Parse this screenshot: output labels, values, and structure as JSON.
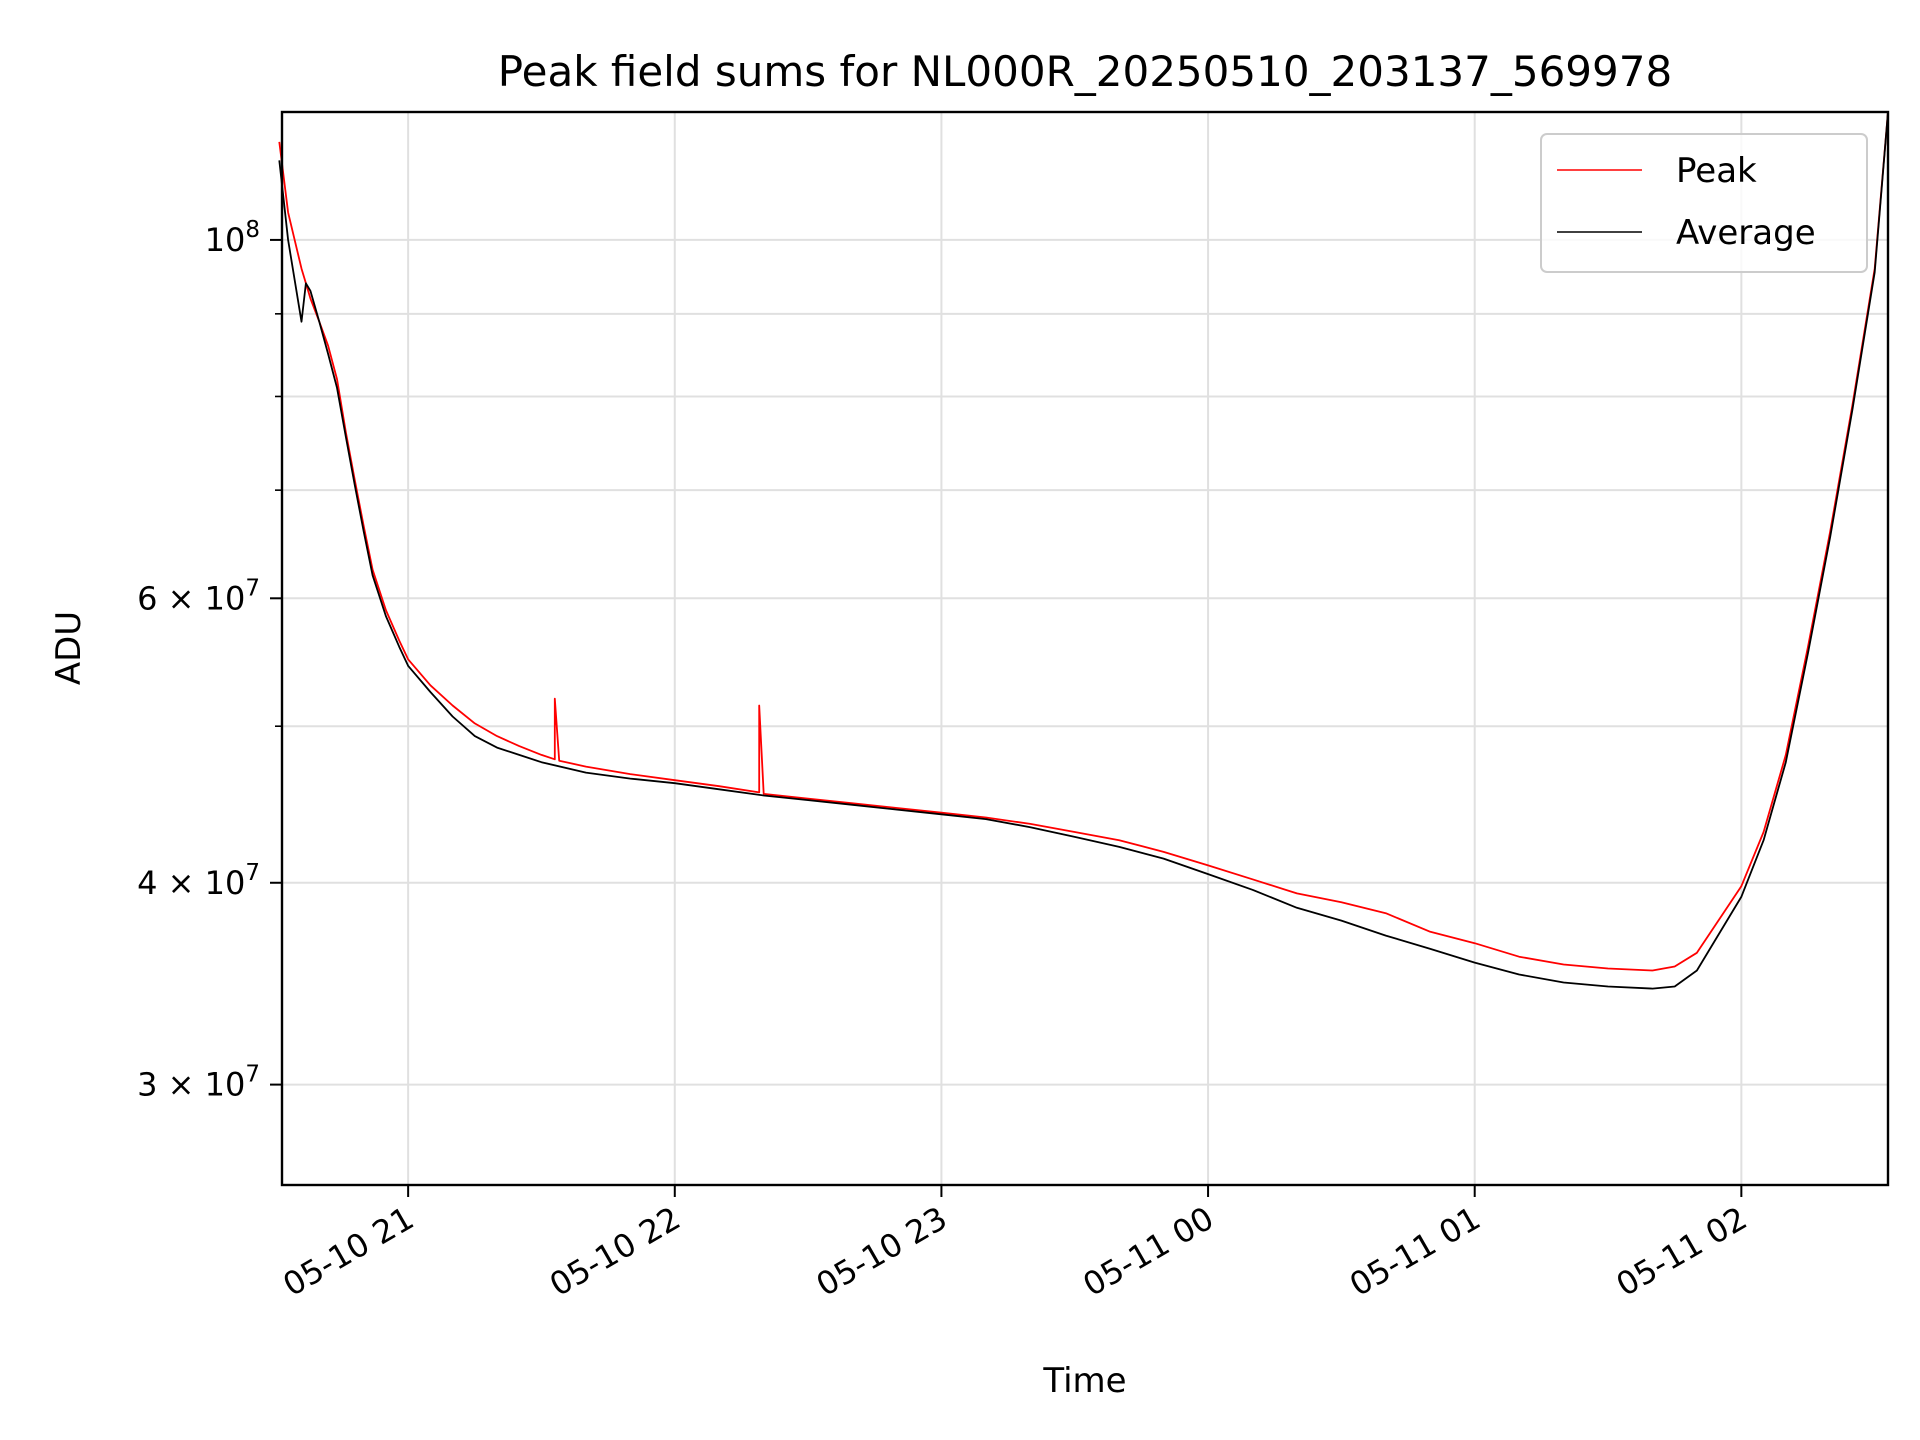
{
  "chart_data": {
    "type": "line",
    "title": "Peak field sums for NL000R_20250510_203137_569978",
    "xlabel": "Time",
    "ylabel": "ADU",
    "y_scale": "log",
    "xlim": [
      "2025-05-10 20:31:37",
      "2025-05-11 02:33:00"
    ],
    "ylim": [
      26000000,
      120000000
    ],
    "x_ticks": [
      {
        "value": "2025-05-10 21:00",
        "label": "05-10 21"
      },
      {
        "value": "2025-05-10 22:00",
        "label": "05-10 22"
      },
      {
        "value": "2025-05-10 23:00",
        "label": "05-10 23"
      },
      {
        "value": "2025-05-11 00:00",
        "label": "05-11 00"
      },
      {
        "value": "2025-05-11 01:00",
        "label": "05-11 01"
      },
      {
        "value": "2025-05-11 02:00",
        "label": "05-11 02"
      }
    ],
    "y_ticks": [
      {
        "value": 30000000,
        "base": "3",
        "exp": "7"
      },
      {
        "value": 40000000,
        "base": "4",
        "exp": "7"
      },
      {
        "value": 60000000,
        "base": "6",
        "exp": "7"
      },
      {
        "value": 100000000,
        "base": "",
        "exp": "8"
      }
    ],
    "y_minor_ticks": [
      50000000,
      70000000,
      80000000,
      90000000
    ],
    "grid": true,
    "legend": "top-right",
    "series": [
      {
        "name": "Peak",
        "color": "#ff0000",
        "x": [
          "2025-05-10 20:31",
          "2025-05-10 20:33",
          "2025-05-10 20:36",
          "2025-05-10 20:37",
          "2025-05-10 20:38",
          "2025-05-10 20:40",
          "2025-05-10 20:42",
          "2025-05-10 20:44",
          "2025-05-10 20:46",
          "2025-05-10 20:48",
          "2025-05-10 20:50",
          "2025-05-10 20:52",
          "2025-05-10 20:55",
          "2025-05-10 20:58",
          "2025-05-10 21:00",
          "2025-05-10 21:05",
          "2025-05-10 21:10",
          "2025-05-10 21:15",
          "2025-05-10 21:20",
          "2025-05-10 21:25",
          "2025-05-10 21:30",
          "2025-05-10 21:33",
          "2025-05-10 21:33",
          "2025-05-10 21:34",
          "2025-05-10 21:40",
          "2025-05-10 21:50",
          "2025-05-10 22:00",
          "2025-05-10 22:10",
          "2025-05-10 22:19",
          "2025-05-10 22:19",
          "2025-05-10 22:20",
          "2025-05-10 22:30",
          "2025-05-10 22:40",
          "2025-05-10 22:50",
          "2025-05-10 23:00",
          "2025-05-10 23:10",
          "2025-05-10 23:20",
          "2025-05-10 23:30",
          "2025-05-10 23:40",
          "2025-05-10 23:50",
          "2025-05-11 00:00",
          "2025-05-11 00:10",
          "2025-05-11 00:20",
          "2025-05-11 00:30",
          "2025-05-11 00:40",
          "2025-05-11 00:50",
          "2025-05-11 01:00",
          "2025-05-11 01:10",
          "2025-05-11 01:20",
          "2025-05-11 01:30",
          "2025-05-11 01:40",
          "2025-05-11 01:45",
          "2025-05-11 01:50",
          "2025-05-11 02:00",
          "2025-05-11 02:05",
          "2025-05-11 02:10",
          "2025-05-11 02:15",
          "2025-05-11 02:20",
          "2025-05-11 02:25",
          "2025-05-11 02:30",
          "2025-05-11 02:33"
        ],
        "values": [
          115000000,
          104000000,
          96000000,
          94000000,
          92000000,
          89000000,
          86000000,
          82000000,
          76000000,
          71000000,
          66500000,
          62500000,
          59000000,
          56500000,
          55000000,
          53000000,
          51500000,
          50200000,
          49300000,
          48600000,
          48000000,
          47700000,
          52000000,
          47600000,
          47200000,
          46700000,
          46300000,
          45900000,
          45500000,
          51500000,
          45400000,
          45100000,
          44800000,
          44500000,
          44200000,
          43900000,
          43500000,
          43000000,
          42500000,
          41800000,
          41000000,
          40200000,
          39400000,
          38900000,
          38300000,
          37300000,
          36700000,
          36000000,
          35600000,
          35400000,
          35300000,
          35500000,
          36200000,
          39800000,
          43000000,
          48000000,
          56000000,
          66000000,
          79000000,
          96000000,
          120000000
        ]
      },
      {
        "name": "Average",
        "color": "#000000",
        "x": [
          "2025-05-10 20:31",
          "2025-05-10 20:33",
          "2025-05-10 20:36",
          "2025-05-10 20:37",
          "2025-05-10 20:38",
          "2025-05-10 20:40",
          "2025-05-10 20:42",
          "2025-05-10 20:44",
          "2025-05-10 20:46",
          "2025-05-10 20:48",
          "2025-05-10 20:50",
          "2025-05-10 20:52",
          "2025-05-10 20:55",
          "2025-05-10 20:58",
          "2025-05-10 21:00",
          "2025-05-10 21:05",
          "2025-05-10 21:10",
          "2025-05-10 21:15",
          "2025-05-10 21:20",
          "2025-05-10 21:25",
          "2025-05-10 21:30",
          "2025-05-10 21:40",
          "2025-05-10 21:50",
          "2025-05-10 22:00",
          "2025-05-10 22:10",
          "2025-05-10 22:20",
          "2025-05-10 22:30",
          "2025-05-10 22:40",
          "2025-05-10 22:50",
          "2025-05-10 23:00",
          "2025-05-10 23:10",
          "2025-05-10 23:20",
          "2025-05-10 23:30",
          "2025-05-10 23:40",
          "2025-05-10 23:50",
          "2025-05-11 00:00",
          "2025-05-11 00:10",
          "2025-05-11 00:20",
          "2025-05-11 00:30",
          "2025-05-11 00:40",
          "2025-05-11 00:50",
          "2025-05-11 01:00",
          "2025-05-11 01:10",
          "2025-05-11 01:20",
          "2025-05-11 01:30",
          "2025-05-11 01:40",
          "2025-05-11 01:45",
          "2025-05-11 01:50",
          "2025-05-11 02:00",
          "2025-05-11 02:05",
          "2025-05-11 02:10",
          "2025-05-11 02:15",
          "2025-05-11 02:20",
          "2025-05-11 02:25",
          "2025-05-11 02:30",
          "2025-05-11 02:33"
        ],
        "values": [
          112000000,
          100000000,
          89000000,
          94000000,
          93000000,
          89000000,
          85000000,
          81000000,
          75500000,
          70500000,
          66000000,
          62000000,
          58500000,
          56000000,
          54500000,
          52500000,
          50700000,
          49300000,
          48500000,
          48000000,
          47500000,
          46800000,
          46400000,
          46100000,
          45700000,
          45300000,
          45000000,
          44700000,
          44400000,
          44100000,
          43800000,
          43300000,
          42700000,
          42100000,
          41400000,
          40500000,
          39600000,
          38600000,
          37900000,
          37100000,
          36400000,
          35700000,
          35100000,
          34700000,
          34500000,
          34400000,
          34500000,
          35300000,
          39200000,
          42500000,
          47500000,
          55500000,
          65500000,
          78500000,
          95500000,
          120000000
        ]
      }
    ]
  }
}
